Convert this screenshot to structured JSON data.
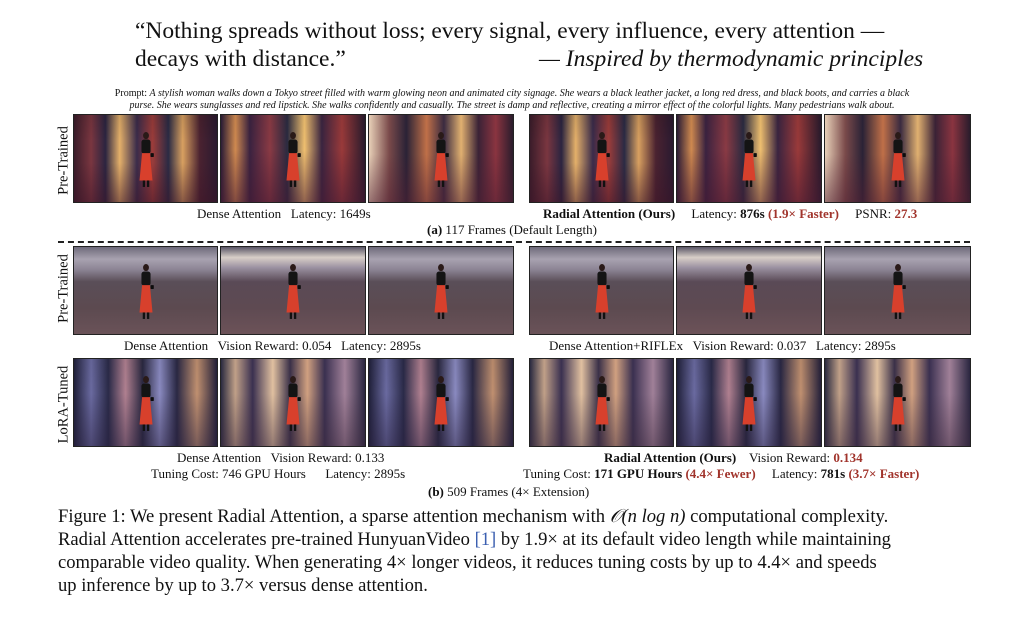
{
  "quote": {
    "line1": "“Nothing spreads without loss; every signal, every influence, every attention —",
    "line2": "decays with distance.”",
    "attribution": "— Inspired by thermodynamic principles"
  },
  "prompt": {
    "label": "Prompt: ",
    "line1": "A stylish woman walks down a Tokyo street filled with warm glowing neon and animated city signage. She wears a black leather jacket, a long red dress, and black boots, and carries a black",
    "line2": "purse. She wears sunglasses and red lipstick. She walks confidently and casually. The street is damp and reflective, creating a mirror effect of the colorful lights. Many pedestrians walk about."
  },
  "section_a": {
    "row_label": "Pre-Trained",
    "left_caption": {
      "method": "Dense Attention",
      "latency": "Latency: 1649s"
    },
    "right_caption": {
      "method": "Radial Attention (Ours)",
      "latency_label": "Latency: ",
      "latency_value": "876s",
      "speedup": "(1.9× Faster)",
      "psnr_label": "PSNR: ",
      "psnr_value": "27.3"
    },
    "sub_letter": "(a)",
    "sub_text": " 117 Frames (Default Length)"
  },
  "section_b": {
    "row1_label": "Pre-Trained",
    "row2_label": "LoRA-Tuned",
    "pre_left": {
      "method": "Dense Attention",
      "reward": "Vision Reward: 0.054",
      "latency": "Latency: 2895s"
    },
    "pre_right": {
      "method": "Dense Attention+RIFLEx",
      "reward": "Vision Reward: 0.037",
      "latency": "Latency: 2895s"
    },
    "lora_left": {
      "method": "Dense Attention",
      "reward": "Vision Reward: 0.133",
      "cost": "Tuning Cost: 746 GPU Hours",
      "latency": "Latency: 2895s"
    },
    "lora_right": {
      "method": "Radial Attention (Ours)",
      "reward_label": "Vision Reward: ",
      "reward_value": "0.134",
      "cost_label": "Tuning Cost: ",
      "cost_value": "171 GPU Hours",
      "cost_gain": "(4.4× Fewer)",
      "latency_label": "Latency: ",
      "latency_value": "781s",
      "latency_gain": "(3.7× Faster)"
    },
    "sub_letter": "(b)",
    "sub_text": " 509 Frames (4× Extension)"
  },
  "figure_caption": {
    "lead": "Figure 1: We present Radial Attention, a sparse attention mechanism with ",
    "complexity": "𝒪(n log n)",
    "rest1": " computational complexity.",
    "line2a": "Radial Attention accelerates pre-trained HunyuanVideo ",
    "cite": "[1]",
    "line2b": " by 1.9× at its default video length while maintaining",
    "line3": "comparable video quality. When generating 4× longer videos, it reduces tuning costs by up to 4.4× and speeds",
    "line4": "up inference by up to 3.7× versus dense attention."
  }
}
